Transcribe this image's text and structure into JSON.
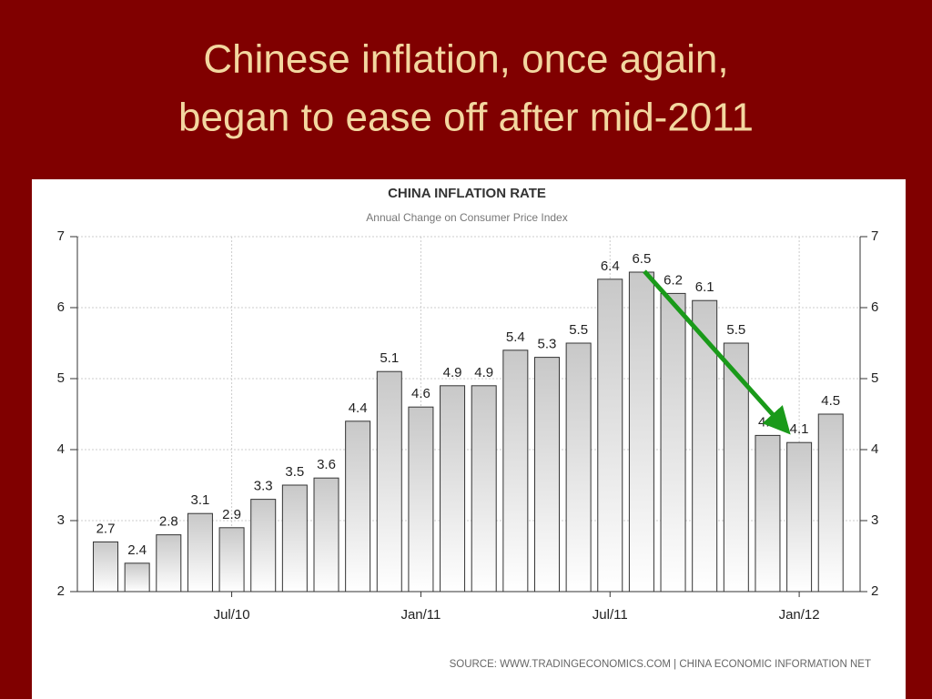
{
  "slide_title": [
    "Chinese inflation, once again,",
    "began to ease off after mid-2011"
  ],
  "chart_data": {
    "type": "bar",
    "title": "CHINA INFLATION RATE",
    "subtitle": "Annual Change on Consumer Price Index",
    "source": "SOURCE:  WWW.TRADINGECONOMICS.COM  |  CHINA  ECONOMIC  INFORMATION  NET",
    "categories": [
      null,
      null,
      null,
      null,
      "Jul/10",
      null,
      null,
      null,
      null,
      null,
      "Jan/11",
      null,
      null,
      null,
      null,
      null,
      "Jul/11",
      null,
      null,
      null,
      null,
      null,
      "Jan/12",
      null
    ],
    "values": [
      2.7,
      2.4,
      2.8,
      3.1,
      2.9,
      3.3,
      3.5,
      3.6,
      4.4,
      5.1,
      4.6,
      4.9,
      4.9,
      5.4,
      5.3,
      5.5,
      6.4,
      6.5,
      6.2,
      6.1,
      5.5,
      4.2,
      4.1,
      4.5
    ],
    "color": "#c8c8c8",
    "ylim": [
      2,
      7
    ],
    "yticks": [
      2,
      3,
      4,
      5,
      6,
      7
    ],
    "y2lim": [
      2,
      7
    ],
    "y2ticks": [
      2,
      3,
      4,
      5,
      6,
      7
    ],
    "grid": true
  }
}
